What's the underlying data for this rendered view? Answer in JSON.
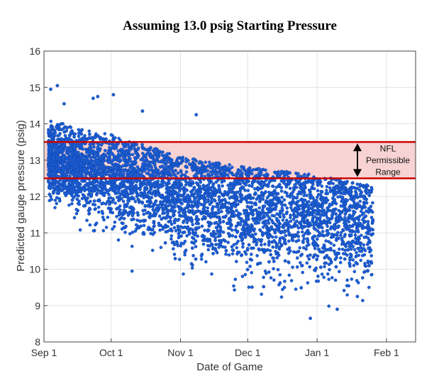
{
  "chart_data": {
    "type": "scatter",
    "title": "Assuming 13.0 psig Starting Pressure",
    "xlabel": "Date of Game",
    "ylabel": "Predicted gauge pressure (psig)",
    "x_axis_type": "date",
    "xlim": [
      "2014-09-01",
      "2015-02-14"
    ],
    "x_ticks": [
      "2014-09-01",
      "2014-10-01",
      "2014-11-01",
      "2014-12-01",
      "2015-01-01",
      "2015-02-01"
    ],
    "x_tick_labels": [
      "Sep 1",
      "Oct 1",
      "Nov 1",
      "Dec 1",
      "Jan 1",
      "Feb 1"
    ],
    "ylim": [
      8,
      16
    ],
    "y_ticks": [
      8,
      9,
      10,
      11,
      12,
      13,
      14,
      15,
      16
    ],
    "grid": true,
    "point_color": "#1c5fd6",
    "point_edge_color": "#0b3a9c",
    "series_summary": [
      {
        "x": "2014-09-05",
        "y_center": 13.0,
        "y_spread": 0.8
      },
      {
        "x": "2014-10-01",
        "y_center": 12.6,
        "y_spread": 1.0
      },
      {
        "x": "2014-11-01",
        "y_center": 12.0,
        "y_spread": 1.2
      },
      {
        "x": "2014-12-01",
        "y_center": 11.7,
        "y_spread": 1.3
      },
      {
        "x": "2015-01-01",
        "y_center": 11.5,
        "y_spread": 1.3
      },
      {
        "x": "2015-01-25",
        "y_center": 11.2,
        "y_spread": 1.2
      }
    ],
    "outliers": [
      {
        "x": "2014-09-07",
        "y": 15.05
      },
      {
        "x": "2014-09-04",
        "y": 14.95
      },
      {
        "x": "2014-09-10",
        "y": 14.55
      },
      {
        "x": "2014-09-23",
        "y": 14.7
      },
      {
        "x": "2014-09-25",
        "y": 14.75
      },
      {
        "x": "2014-10-02",
        "y": 14.8
      },
      {
        "x": "2014-10-15",
        "y": 14.35
      },
      {
        "x": "2014-11-08",
        "y": 14.25
      },
      {
        "x": "2014-12-29",
        "y": 8.65
      },
      {
        "x": "2015-01-10",
        "y": 8.9
      },
      {
        "x": "2015-01-19",
        "y": 9.25
      },
      {
        "x": "2015-01-22",
        "y": 11.95
      }
    ],
    "bands": [
      {
        "y0": 12.5,
        "y1": 13.5,
        "fill": "#f7d3d3",
        "line_color": "#cc0000"
      }
    ],
    "annotations": [
      {
        "lines": [
          "NFL",
          "Permissible",
          "Range"
        ],
        "arrow": "double-vertical",
        "y0": 12.5,
        "y1": 13.5
      }
    ]
  }
}
